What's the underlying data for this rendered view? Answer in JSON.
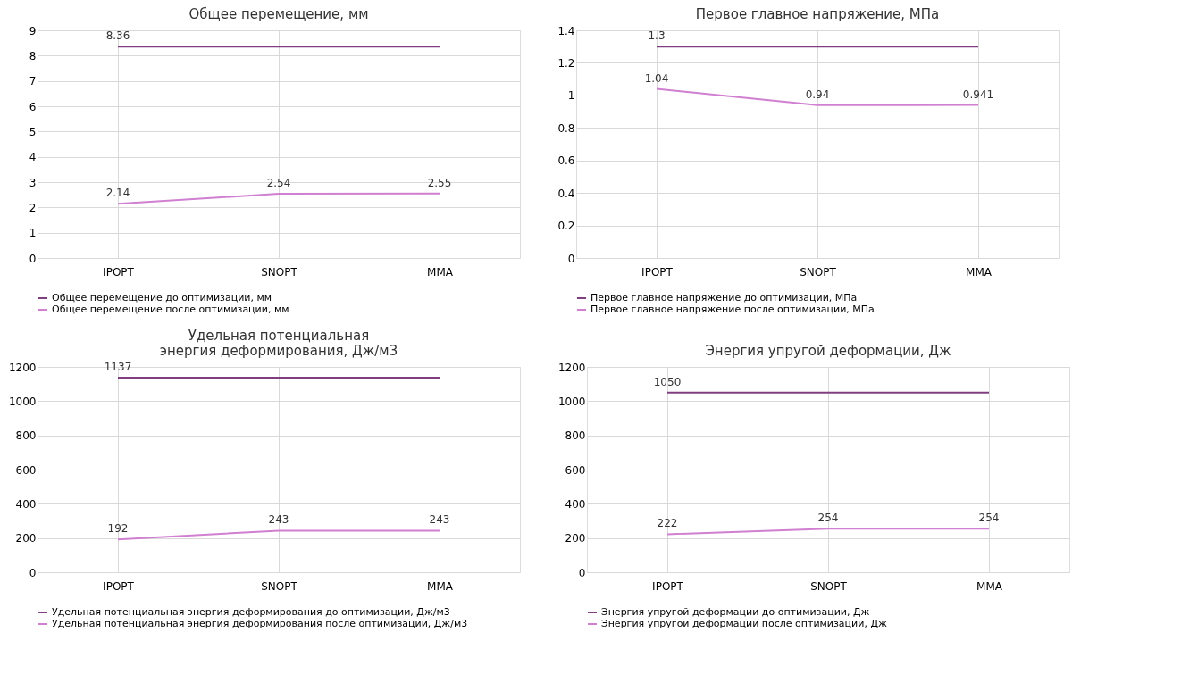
{
  "chart_data": [
    {
      "type": "line",
      "title": "Общее перемещение, мм",
      "categories": [
        "IPOPT",
        "SNOPT",
        "MMA"
      ],
      "ylim": [
        0,
        9
      ],
      "yticks": [
        0,
        1,
        2,
        3,
        4,
        5,
        6,
        7,
        8,
        9
      ],
      "grid": true,
      "legend": "bottom",
      "marker": "none",
      "line_style": "solid",
      "series": [
        {
          "name": "Общее перемещение  до  оптимизации,   мм",
          "color": "#7f3f7f",
          "values": [
            8.36,
            8.36,
            8.36
          ],
          "value_labels": [
            "8.36",
            null,
            null
          ]
        },
        {
          "name": "Общее перемещение  после  оптимизации,  мм",
          "color": "#d17fd1",
          "values": [
            2.14,
            2.54,
            2.55
          ],
          "value_labels": [
            "2.14",
            "2.54",
            "2.55"
          ]
        }
      ]
    },
    {
      "type": "line",
      "title": "Первое главное напряжение, МПа",
      "categories": [
        "IPOPT",
        "SNOPT",
        "MMA"
      ],
      "ylim": [
        0,
        1.4
      ],
      "yticks": [
        0,
        0.2,
        0.4,
        0.6,
        0.8,
        1,
        1.2,
        1.4
      ],
      "grid": true,
      "legend": "bottom",
      "marker": "none",
      "line_style": "solid",
      "series": [
        {
          "name": "Первое главное напряжение  до оптимизации,   МПа",
          "color": "#7f3f7f",
          "values": [
            1.3,
            1.3,
            1.3
          ],
          "value_labels": [
            "1.3",
            null,
            null
          ]
        },
        {
          "name": "Первое главное напряжение  после оптимизации,  МПа",
          "color": "#d17fd1",
          "values": [
            1.04,
            0.94,
            0.941
          ],
          "value_labels": [
            "1.04",
            "0.94",
            "0.941"
          ]
        }
      ]
    },
    {
      "type": "line",
      "title": "Удельная  потенциальная\nэнергия  деформирования,  Дж/м3",
      "categories": [
        "IPOPT",
        "SNOPT",
        "MMA"
      ],
      "ylim": [
        0,
        1200
      ],
      "yticks": [
        0,
        200,
        400,
        600,
        800,
        1000,
        1200
      ],
      "grid": true,
      "legend": "bottom",
      "marker": "none",
      "line_style": "solid",
      "series": [
        {
          "name": "Удельная потенциальная энергия деформирования  до  оптимизации, Дж/м3",
          "color": "#7f3f7f",
          "values": [
            1137,
            1137,
            1137
          ],
          "value_labels": [
            "1137",
            null,
            null
          ]
        },
        {
          "name": "Удельная потенциальная энергия деформирования  после  оптимизации, Дж/м3",
          "color": "#d17fd1",
          "values": [
            192,
            243,
            243
          ],
          "value_labels": [
            "192",
            "243",
            "243"
          ]
        }
      ]
    },
    {
      "type": "line",
      "title": "Энергия  упругой  деформации,  Дж",
      "categories": [
        "IPOPT",
        "SNOPT",
        "MMA"
      ],
      "ylim": [
        0,
        1200
      ],
      "yticks": [
        0,
        200,
        400,
        600,
        800,
        1000,
        1200
      ],
      "grid": true,
      "legend": "bottom",
      "marker": "none",
      "line_style": "solid",
      "series": [
        {
          "name": "Энергия упругой деформации до оптимизации, Дж",
          "color": "#7f3f7f",
          "values": [
            1050,
            1050,
            1050
          ],
          "value_labels": [
            "1050",
            null,
            null
          ]
        },
        {
          "name": "Энергия упругой деформации после оптимизации, Дж",
          "color": "#d17fd1",
          "values": [
            222,
            254,
            254
          ],
          "value_labels": [
            "222",
            "254",
            "254"
          ]
        }
      ]
    }
  ]
}
